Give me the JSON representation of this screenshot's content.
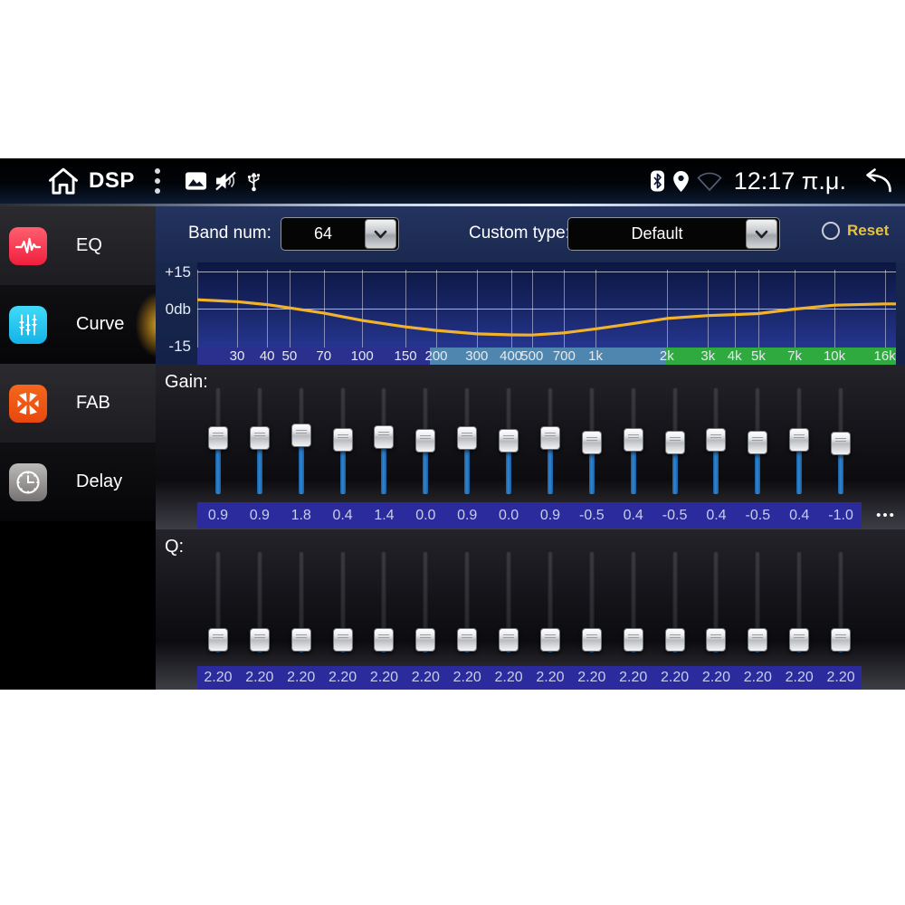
{
  "status_bar": {
    "app_title": "DSP",
    "time": "12:17 π.μ.",
    "icons": [
      "home-icon",
      "kebab-menu-icon",
      "gallery-icon",
      "volume-muted-icon",
      "usb-icon",
      "bluetooth-icon",
      "location-icon",
      "wifi-off-icon",
      "back-icon"
    ]
  },
  "sidebar": {
    "items": [
      {
        "label": "EQ",
        "icon": "eq-wave-icon",
        "active": false
      },
      {
        "label": "Curve",
        "icon": "curve-sliders-icon",
        "active": true
      },
      {
        "label": "FAB",
        "icon": "fab-arrows-icon",
        "active": false
      },
      {
        "label": "Delay",
        "icon": "delay-clock-icon",
        "active": false
      }
    ]
  },
  "controls": {
    "band_num_label": "Band num:",
    "band_num_value": "64",
    "custom_type_label": "Custom type:",
    "custom_type_value": "Default",
    "reset_label": "Reset",
    "reset_selected": false
  },
  "eq_graph": {
    "type": "line",
    "y_axis_labels": [
      "+15",
      "0db",
      "-15"
    ],
    "y_range": [
      -15,
      15
    ],
    "curve_color": "#f2b32c",
    "freq_ticks": [
      {
        "label": "30",
        "pos": 5.7
      },
      {
        "label": "40",
        "pos": 10.0
      },
      {
        "label": "50",
        "pos": 13.2
      },
      {
        "label": "70",
        "pos": 18.1
      },
      {
        "label": "100",
        "pos": 23.6
      },
      {
        "label": "150",
        "pos": 29.8
      },
      {
        "label": "200",
        "pos": 34.2
      },
      {
        "label": "300",
        "pos": 40.0
      },
      {
        "label": "400",
        "pos": 44.9
      },
      {
        "label": "500",
        "pos": 47.9
      },
      {
        "label": "700",
        "pos": 52.5
      },
      {
        "label": "1k",
        "pos": 57.0
      },
      {
        "label": "2k",
        "pos": 67.2
      },
      {
        "label": "3k",
        "pos": 73.1
      },
      {
        "label": "4k",
        "pos": 76.9
      },
      {
        "label": "5k",
        "pos": 80.3
      },
      {
        "label": "7k",
        "pos": 85.5
      },
      {
        "label": "10k",
        "pos": 91.2
      },
      {
        "label": "16k",
        "pos": 98.4
      }
    ],
    "strip_zones": [
      {
        "color": "#2b2f8e",
        "from": 0,
        "to": 33.3
      },
      {
        "color": "#4e86b0",
        "from": 33.3,
        "to": 67.0
      },
      {
        "color": "#2faa3e",
        "from": 67.0,
        "to": 100
      }
    ],
    "curve_points_pct_db": [
      [
        0,
        3.6
      ],
      [
        5.7,
        2.8
      ],
      [
        10,
        1.6
      ],
      [
        13.2,
        0.3
      ],
      [
        18.1,
        -1.8
      ],
      [
        23.6,
        -4.8
      ],
      [
        29.8,
        -7.4
      ],
      [
        34.2,
        -8.8
      ],
      [
        40,
        -10.2
      ],
      [
        44.9,
        -10.6
      ],
      [
        47.9,
        -10.7
      ],
      [
        52.5,
        -9.8
      ],
      [
        57,
        -8.2
      ],
      [
        62,
        -6.2
      ],
      [
        67.2,
        -4.0
      ],
      [
        73.1,
        -2.8
      ],
      [
        76.9,
        -2.4
      ],
      [
        80.3,
        -2.0
      ],
      [
        85.5,
        -0.2
      ],
      [
        91.2,
        1.4
      ],
      [
        98.4,
        1.9
      ],
      [
        100,
        1.9
      ]
    ]
  },
  "gain": {
    "label": "Gain:",
    "values": [
      "0.9",
      "0.9",
      "1.8",
      "0.4",
      "1.4",
      "0.0",
      "0.9",
      "0.0",
      "0.9",
      "-0.5",
      "0.4",
      "-0.5",
      "0.4",
      "-0.5",
      "0.4",
      "-1.0"
    ],
    "more_label": "•••"
  },
  "q": {
    "label": "Q:",
    "values": [
      "2.20",
      "2.20",
      "2.20",
      "2.20",
      "2.20",
      "2.20",
      "2.20",
      "2.20",
      "2.20",
      "2.20",
      "2.20",
      "2.20",
      "2.20",
      "2.20",
      "2.20",
      "2.20"
    ]
  },
  "colors": {
    "value_strip": "#2b2b9e",
    "slider_fill": "#2f86d4",
    "reset_accent": "#e8c33a",
    "curve": "#f2b32c"
  }
}
